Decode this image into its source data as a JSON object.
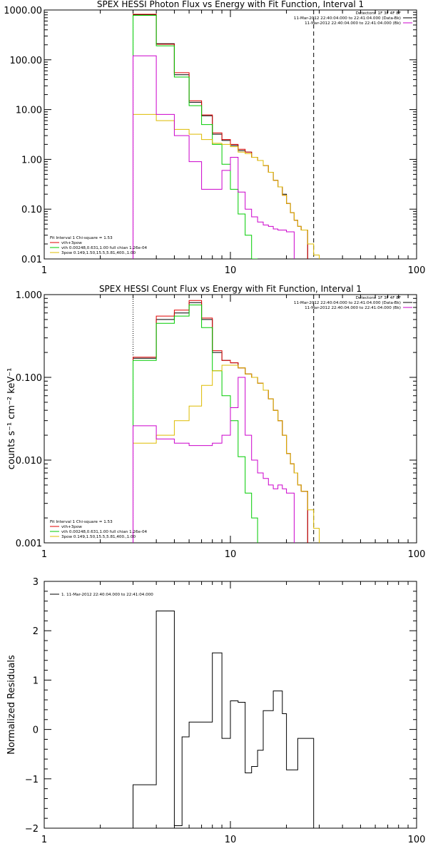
{
  "chart_data": [
    {
      "type": "line",
      "step": true,
      "title": "SPEX HESSI Photon Flux vs Energy with Fit Function, Interval 1",
      "xscale": "log",
      "yscale": "log",
      "xlim": [
        1,
        100
      ],
      "ylim": [
        0.01,
        1000
      ],
      "x_ticks": [
        "1",
        "10",
        "100"
      ],
      "y_ticks": [
        "0.01",
        "0.10",
        "1.00",
        "10.00",
        "100.00",
        "1000.00"
      ],
      "x_edges": [
        3,
        3.5,
        4,
        4.5,
        5,
        5.5,
        6,
        6.5,
        7,
        7.5,
        8,
        8.5,
        9,
        9.5,
        10,
        10.5,
        11,
        11.5,
        12,
        12.5,
        13,
        13.5,
        14,
        15,
        16,
        17,
        18,
        19,
        20,
        21,
        22,
        23,
        24,
        25,
        26,
        27,
        28,
        29,
        30,
        32,
        34
      ],
      "vlines": [
        {
          "x": 3,
          "style": "dotted"
        },
        {
          "x": 28,
          "style": "dashed"
        }
      ],
      "legend_top": [
        "Detectors: 1F 3F 4F 8F",
        "11-Mar-2012 22:40:04.000 to 22:41:04.000 (Data-Bk)",
        "11-Mar-2012 22:40:04.000 to 22:41:04.000 (Bk)"
      ],
      "legend_bottom": [
        "Fit Interval 1    Chi-square = 1.53",
        "vth+3pow",
        "vth 0.00248,0.631,1.00   full chian 1.26e-04",
        "3pow 0.149,1.50,15.5,5.81,400.,1.00"
      ],
      "series": [
        {
          "name": "Data-Bk",
          "color": "#000000",
          "values": [
            800,
            800,
            210,
            210,
            50,
            50,
            14,
            14,
            7.5,
            7.5,
            3.2,
            3.2,
            2.4,
            2.4,
            1.9,
            1.9,
            1.5,
            1.5,
            1.4,
            1.4,
            1.1,
            1.1,
            0.95,
            0.75,
            0.55,
            0.38,
            0.28,
            0.2,
            0.13,
            0.085,
            0.06,
            0.045,
            0.038,
            0.038,
            0.0,
            0.0,
            null,
            null,
            null,
            null
          ]
        },
        {
          "name": "vth+3pow",
          "color": "#e00000",
          "values": [
            820,
            820,
            205,
            205,
            55,
            55,
            15,
            15,
            7.8,
            7.8,
            3.4,
            3.4,
            2.5,
            2.5,
            2.0,
            2.0,
            1.6,
            1.6,
            1.4,
            1.4,
            1.1,
            1.1,
            0.95,
            0.75,
            0.55,
            0.38,
            0.28,
            0.19,
            0.13,
            0.085,
            0.06,
            0.045,
            0.038,
            0.038,
            null,
            null,
            null,
            null,
            null,
            null
          ]
        },
        {
          "name": "vth",
          "color": "#00cc00",
          "values": [
            780,
            780,
            190,
            190,
            45,
            45,
            12,
            12,
            5,
            5,
            2,
            2,
            0.8,
            0.8,
            0.25,
            0.25,
            0.08,
            0.08,
            0.03,
            0.03,
            0.01,
            0.01,
            null,
            null,
            null,
            null,
            null,
            null,
            null,
            null,
            null,
            null,
            null,
            null,
            null,
            null,
            null,
            null,
            null,
            null
          ]
        },
        {
          "name": "3pow",
          "color": "#ddbb00",
          "values": [
            8,
            8,
            6,
            6,
            4,
            4,
            3.2,
            3.2,
            2.5,
            2.5,
            2.1,
            2.1,
            2.0,
            2.0,
            1.8,
            1.8,
            1.4,
            1.4,
            1.3,
            1.3,
            1.1,
            1.1,
            0.95,
            0.75,
            0.55,
            0.38,
            0.28,
            0.19,
            0.13,
            0.085,
            0.06,
            0.045,
            0.038,
            0.038,
            0.02,
            0.02,
            0.012,
            0.012,
            null,
            null
          ]
        },
        {
          "name": "Bk",
          "color": "#cc00cc",
          "values": [
            120,
            120,
            8,
            8,
            3,
            3,
            0.9,
            0.9,
            0.25,
            0.25,
            0.25,
            0.25,
            0.6,
            0.6,
            1.1,
            1.1,
            0.22,
            0.22,
            0.1,
            0.1,
            0.07,
            0.07,
            0.055,
            0.048,
            0.045,
            0.04,
            0.038,
            0.038,
            0.035,
            0.035,
            null,
            null,
            null,
            null,
            null,
            null,
            null,
            null,
            null,
            null
          ]
        }
      ]
    },
    {
      "type": "line",
      "step": true,
      "title": "SPEX HESSI Count Flux vs Energy with Fit Function, Interval 1",
      "ylabel": "counts s⁻¹ cm⁻² keV⁻¹",
      "xscale": "log",
      "yscale": "log",
      "xlim": [
        1,
        100
      ],
      "ylim": [
        0.001,
        1.0
      ],
      "x_ticks": [
        "1",
        "10",
        "100"
      ],
      "y_ticks": [
        "0.001",
        "0.010",
        "0.100",
        "1.000"
      ],
      "x_edges": [
        3,
        3.5,
        4,
        4.5,
        5,
        5.5,
        6,
        6.5,
        7,
        7.5,
        8,
        8.5,
        9,
        9.5,
        10,
        10.5,
        11,
        11.5,
        12,
        12.5,
        13,
        13.5,
        14,
        15,
        16,
        17,
        18,
        19,
        20,
        21,
        22,
        23,
        24,
        25,
        26,
        27,
        28,
        29,
        30,
        32,
        34
      ],
      "vlines": [
        {
          "x": 3,
          "style": "dotted"
        },
        {
          "x": 28,
          "style": "dashed"
        }
      ],
      "legend_top": [
        "Detectors: 1F 3F 4F 8F",
        "11-Mar-2012 22:40:04.000 to 22:41:04.000 (Data-Bk)",
        "11-Mar-2012 22:40:04.000 to 22:41:04.000 (Bk)"
      ],
      "legend_bottom": [
        "Fit Interval 1    Chi-square = 1.53",
        "vth+3pow",
        "vth 0.00248,0.631,1.00   full chian 1.26e-04",
        "3pow 0.149,1.50,15.5,5.81,400.,1.00"
      ],
      "series": [
        {
          "name": "Data-Bk",
          "color": "#000000",
          "values": [
            0.17,
            0.17,
            0.5,
            0.5,
            0.6,
            0.6,
            0.8,
            0.8,
            0.5,
            0.5,
            0.2,
            0.2,
            0.16,
            0.16,
            0.15,
            0.15,
            0.13,
            0.13,
            0.11,
            0.11,
            0.1,
            0.1,
            0.085,
            0.07,
            0.055,
            0.04,
            0.03,
            0.02,
            0.012,
            0.009,
            0.007,
            0.005,
            0.0042,
            0.0042,
            null,
            null,
            null,
            null,
            null,
            null
          ]
        },
        {
          "name": "vth+3pow",
          "color": "#e00000",
          "values": [
            0.175,
            0.175,
            0.55,
            0.55,
            0.65,
            0.65,
            0.85,
            0.85,
            0.52,
            0.52,
            0.21,
            0.21,
            0.16,
            0.16,
            0.15,
            0.15,
            0.13,
            0.13,
            0.11,
            0.11,
            0.1,
            0.1,
            0.085,
            0.07,
            0.055,
            0.04,
            0.03,
            0.02,
            0.012,
            0.009,
            0.007,
            0.005,
            0.0042,
            0.0042,
            null,
            null,
            null,
            null,
            null,
            null
          ]
        },
        {
          "name": "vth",
          "color": "#00cc00",
          "values": [
            0.16,
            0.16,
            0.45,
            0.45,
            0.55,
            0.55,
            0.75,
            0.75,
            0.4,
            0.4,
            0.12,
            0.12,
            0.06,
            0.06,
            0.03,
            0.03,
            0.011,
            0.011,
            0.004,
            0.004,
            0.002,
            0.002,
            null,
            null,
            null,
            null,
            null,
            null,
            null,
            null,
            null,
            null,
            null,
            null,
            null,
            null,
            null,
            null,
            null,
            null
          ]
        },
        {
          "name": "3pow",
          "color": "#ddbb00",
          "values": [
            0.016,
            0.016,
            0.02,
            0.02,
            0.03,
            0.03,
            0.045,
            0.045,
            0.08,
            0.08,
            0.12,
            0.12,
            0.14,
            0.14,
            0.14,
            0.14,
            0.13,
            0.13,
            0.11,
            0.11,
            0.1,
            0.1,
            0.085,
            0.07,
            0.055,
            0.04,
            0.03,
            0.02,
            0.012,
            0.009,
            0.007,
            0.005,
            0.0042,
            0.0042,
            0.0025,
            0.0025,
            0.0015,
            0.0015,
            null,
            null
          ]
        },
        {
          "name": "Bk",
          "color": "#cc00cc",
          "values": [
            0.026,
            0.026,
            0.018,
            0.018,
            0.016,
            0.016,
            0.015,
            0.015,
            0.015,
            0.015,
            0.016,
            0.016,
            0.02,
            0.02,
            0.043,
            0.043,
            0.1,
            0.1,
            0.02,
            0.02,
            0.01,
            0.01,
            0.007,
            0.006,
            0.005,
            0.0045,
            0.005,
            0.0045,
            0.004,
            0.004,
            null,
            null,
            null,
            null,
            null,
            null,
            null,
            null,
            null,
            null
          ]
        }
      ]
    },
    {
      "type": "line",
      "step": true,
      "title": "",
      "ylabel": "Normalized Residuals",
      "xscale": "log",
      "yscale": "linear",
      "xlim": [
        1,
        100
      ],
      "ylim": [
        -2,
        3
      ],
      "x_ticks": [
        "1",
        "10",
        "100"
      ],
      "y_ticks": [
        "−2",
        "−1",
        "0",
        "1",
        "2",
        "3"
      ],
      "legend": [
        "1. 11-Mar-2012 22:40:04.000 to 22:41:04.000"
      ],
      "x_edges": [
        3,
        4,
        4.5,
        5,
        5.5,
        6,
        7,
        7.5,
        8,
        8.5,
        9,
        10,
        11,
        12,
        13,
        14,
        15,
        16,
        17,
        18,
        19,
        20,
        21,
        23,
        25,
        28
      ],
      "series": [
        {
          "name": "1. 11-Mar-2012 22:40:04.000 to 22:41:04.000",
          "color": "#000000",
          "values": [
            -1.12,
            2.4,
            2.4,
            -1.95,
            -0.15,
            0.15,
            0.15,
            0.15,
            1.55,
            1.55,
            -0.18,
            0.58,
            0.55,
            -0.88,
            -0.75,
            -0.42,
            0.38,
            0.38,
            0.78,
            0.78,
            0.32,
            -0.82,
            -0.82,
            -0.18,
            -0.18
          ]
        }
      ]
    }
  ]
}
